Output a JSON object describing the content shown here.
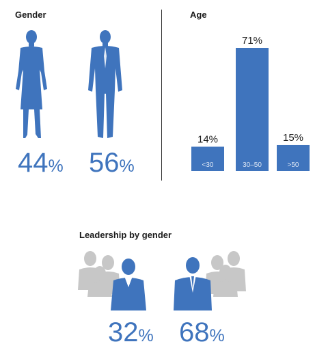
{
  "gender": {
    "heading": "Gender",
    "female": {
      "value": 44,
      "unit": "%"
    },
    "male": {
      "value": 56,
      "unit": "%"
    }
  },
  "age": {
    "heading": "Age"
  },
  "leadership": {
    "heading": "Leadership by gender",
    "female": {
      "value": 32,
      "unit": "%"
    },
    "male": {
      "value": 68,
      "unit": "%"
    }
  },
  "colors": {
    "primary": "#3f74bd",
    "grey": "#c7c7c7",
    "text": "#1a1a1a",
    "bar_label": "#dce6f4"
  },
  "icons": [
    "woman-figure-icon",
    "man-figure-icon",
    "women-group-icon",
    "men-group-icon"
  ],
  "chart_data": [
    {
      "type": "bar",
      "title": "Age",
      "categories": [
        "<30",
        "30–50",
        ">50"
      ],
      "values": [
        14,
        71,
        15
      ],
      "data_labels": [
        "14%",
        "71%",
        "15%"
      ],
      "ylim": [
        0,
        71
      ],
      "grid": false
    }
  ]
}
